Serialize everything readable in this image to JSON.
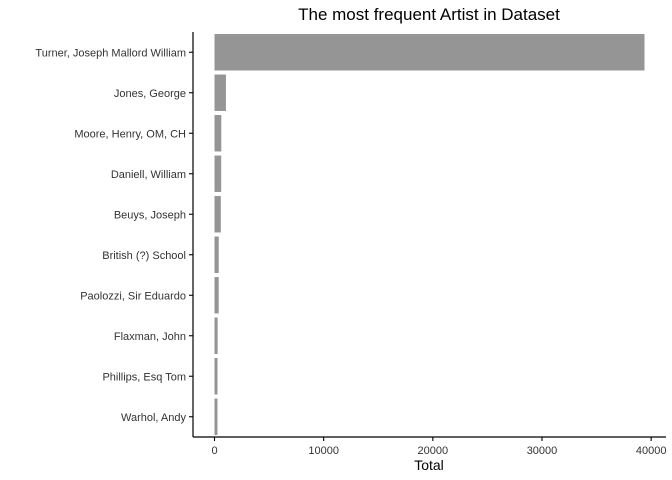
{
  "chart_data": {
    "type": "bar",
    "orientation": "horizontal",
    "title": "The most frequent Artist in Dataset",
    "xlabel": "Total",
    "ylabel": "",
    "categories": [
      "Turner, Joseph Mallord William",
      "Jones, George",
      "Moore, Henry, OM, CH",
      "Daniell, William",
      "Beuys, Joseph",
      "British (?) School",
      "Paolozzi, Sir Eduardo",
      "Flaxman, John",
      "Phillips, Esq Tom",
      "Warhol, Andy"
    ],
    "values": [
      39389,
      1046,
      623,
      612,
      578,
      388,
      385,
      287,
      274,
      272
    ],
    "xlim": [
      -1970,
      41360
    ],
    "xticks": [
      0,
      10000,
      20000,
      30000,
      40000
    ],
    "xtick_labels": [
      "0",
      "10000",
      "20000",
      "30000",
      "40000"
    ],
    "grid": false,
    "legend": "none",
    "bar_color": "#959595"
  }
}
